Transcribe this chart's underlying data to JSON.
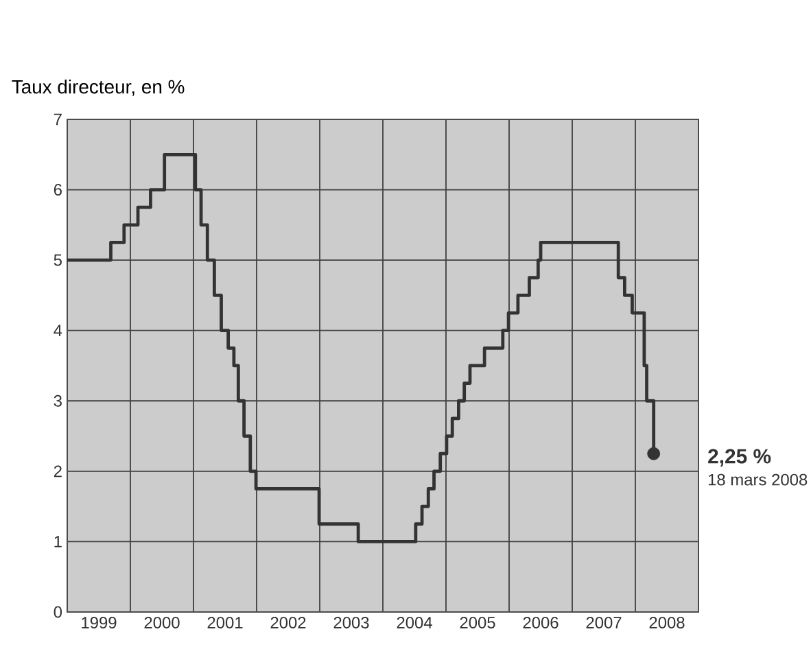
{
  "chart_data": {
    "type": "step",
    "ylabel": "Taux directeur, en %",
    "xlim": [
      1999,
      2009
    ],
    "ylim": [
      0,
      7
    ],
    "yticks": [
      0,
      1,
      2,
      3,
      4,
      5,
      6,
      7
    ],
    "xticks": [
      {
        "value": 1999,
        "label": null
      },
      {
        "value": 2000,
        "label": null
      },
      {
        "value": 2001,
        "label": null
      },
      {
        "value": 2002,
        "label": null
      },
      {
        "value": 2003,
        "label": null
      },
      {
        "value": 2004,
        "label": null
      },
      {
        "value": 2005,
        "label": null
      },
      {
        "value": 2006,
        "label": null
      },
      {
        "value": 2007,
        "label": null
      },
      {
        "value": 2008,
        "label": null
      },
      {
        "value": 2009,
        "label": null
      },
      {
        "value": 1999.5,
        "label": "1999"
      },
      {
        "value": 2000.5,
        "label": "2000"
      },
      {
        "value": 2001.5,
        "label": "2001"
      },
      {
        "value": 2002.5,
        "label": "2002"
      },
      {
        "value": 2003.5,
        "label": "2003"
      },
      {
        "value": 2004.5,
        "label": "2004"
      },
      {
        "value": 2005.5,
        "label": "2005"
      },
      {
        "value": 2006.5,
        "label": "2006"
      },
      {
        "value": 2007.5,
        "label": "2007"
      },
      {
        "value": 2008.5,
        "label": "2008"
      }
    ],
    "grid": true,
    "series": [
      {
        "color": "#333333",
        "x": [
          1999.0,
          1999.69,
          1999.9,
          2000.12,
          2000.32,
          2000.54,
          2001.03,
          2001.12,
          2001.22,
          2001.33,
          2001.44,
          2001.55,
          2001.64,
          2001.71,
          2001.8,
          2001.9,
          2001.99,
          2002.99,
          2003.61,
          2004.52,
          2004.62,
          2004.72,
          2004.81,
          2004.91,
          2005.01,
          2005.1,
          2005.2,
          2005.29,
          2005.38,
          2005.61,
          2005.9,
          2005.99,
          2006.14,
          2006.32,
          2006.46,
          2006.5,
          2007.73,
          2007.83,
          2007.95,
          2008.14,
          2008.18,
          2008.29
        ],
        "values": [
          5.0,
          5.25,
          5.5,
          5.75,
          6.0,
          6.5,
          6.0,
          5.5,
          5.0,
          4.5,
          4.0,
          3.75,
          3.5,
          3.0,
          2.5,
          2.0,
          1.75,
          1.25,
          1.0,
          1.25,
          1.5,
          1.75,
          2.0,
          2.25,
          2.5,
          2.75,
          3.0,
          3.25,
          3.5,
          3.75,
          4.0,
          4.25,
          4.5,
          4.75,
          5.0,
          5.25,
          4.75,
          4.5,
          4.25,
          3.5,
          3.0,
          2.25
        ]
      },
      {
        "type": "scatter",
        "color": "#333333",
        "marker": "circle",
        "x": [
          2008.29
        ],
        "values": [
          2.25
        ]
      }
    ],
    "annotations": [
      {
        "text": "**2,25 %**",
        "x": 2008.29,
        "y": 2.25
      },
      "18 mars 2008"
    ]
  }
}
